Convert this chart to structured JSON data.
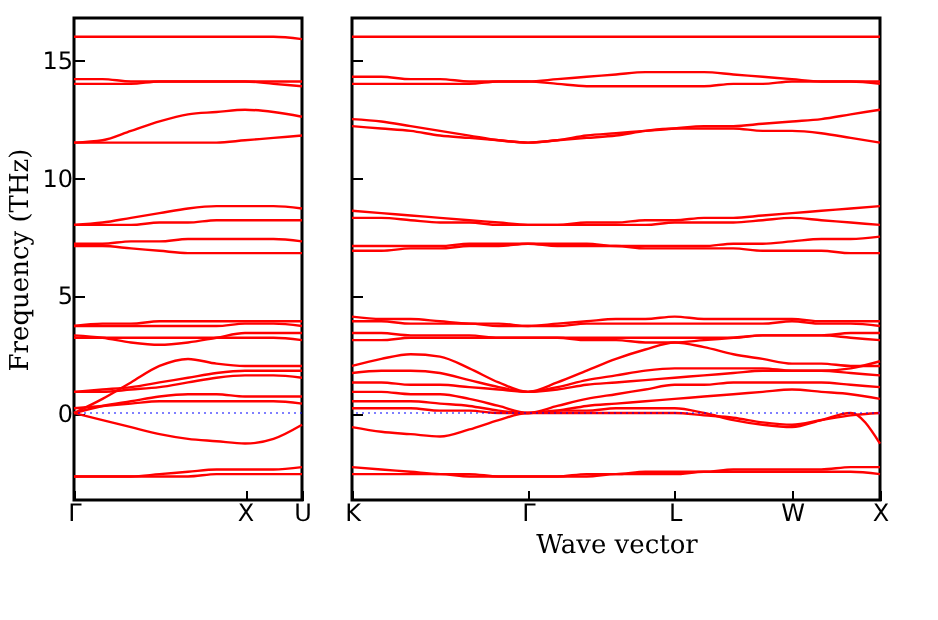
{
  "chart_data": [
    {
      "type": "line",
      "ylabel": "Frequency (THz)",
      "categories": [
        "Γ",
        null,
        null,
        null,
        null,
        null,
        "X",
        null,
        "U"
      ],
      "ylim": [
        -3.7,
        16.8
      ],
      "yticks": [
        0,
        5,
        10,
        15
      ],
      "grid": false,
      "legend": false,
      "ref_lines": [
        {
          "axis": "y",
          "value": 0,
          "color": "#0000ff",
          "line_style": "dotted"
        }
      ],
      "series": [
        {
          "color": "#ff0000",
          "values": [
            16.0,
            16.0,
            16.0,
            16.0,
            16.0,
            16.0,
            16.0,
            16.0,
            15.9
          ]
        },
        {
          "color": "#ff0000",
          "values": [
            14.0,
            14.0,
            14.0,
            14.1,
            14.1,
            14.1,
            14.1,
            14.0,
            13.9
          ]
        },
        {
          "color": "#ff0000",
          "values": [
            14.2,
            14.2,
            14.1,
            14.1,
            14.1,
            14.1,
            14.1,
            14.1,
            14.1
          ]
        },
        {
          "color": "#ff0000",
          "values": [
            11.5,
            11.6,
            12.0,
            12.4,
            12.7,
            12.8,
            12.9,
            12.8,
            12.6
          ]
        },
        {
          "color": "#ff0000",
          "values": [
            11.5,
            11.5,
            11.5,
            11.5,
            11.5,
            11.5,
            11.6,
            11.7,
            11.8
          ]
        },
        {
          "color": "#ff0000",
          "values": [
            8.0,
            8.1,
            8.3,
            8.5,
            8.7,
            8.8,
            8.8,
            8.8,
            8.7
          ]
        },
        {
          "color": "#ff0000",
          "values": [
            8.0,
            8.0,
            8.0,
            8.1,
            8.1,
            8.2,
            8.2,
            8.2,
            8.2
          ]
        },
        {
          "color": "#ff0000",
          "values": [
            7.2,
            7.2,
            7.3,
            7.3,
            7.4,
            7.4,
            7.4,
            7.4,
            7.3
          ]
        },
        {
          "color": "#ff0000",
          "values": [
            7.1,
            7.1,
            7.0,
            6.9,
            6.8,
            6.8,
            6.8,
            6.8,
            6.8
          ]
        },
        {
          "color": "#ff0000",
          "values": [
            3.7,
            3.8,
            3.8,
            3.9,
            3.9,
            3.9,
            3.9,
            3.9,
            3.9
          ]
        },
        {
          "color": "#ff0000",
          "values": [
            3.7,
            3.7,
            3.7,
            3.7,
            3.7,
            3.7,
            3.8,
            3.8,
            3.7
          ]
        },
        {
          "color": "#ff0000",
          "values": [
            3.3,
            3.2,
            3.0,
            2.9,
            3.0,
            3.2,
            3.4,
            3.4,
            3.4
          ]
        },
        {
          "color": "#ff0000",
          "values": [
            3.2,
            3.2,
            3.2,
            3.2,
            3.2,
            3.2,
            3.2,
            3.2,
            3.1
          ]
        },
        {
          "color": "#ff0000",
          "values": [
            0,
            0.6,
            1.3,
            2.0,
            2.3,
            2.1,
            2.0,
            2.0,
            2.0
          ]
        },
        {
          "color": "#ff0000",
          "values": [
            0.9,
            1.0,
            1.1,
            1.3,
            1.5,
            1.7,
            1.8,
            1.8,
            1.8
          ]
        },
        {
          "color": "#ff0000",
          "values": [
            0.9,
            0.9,
            1.0,
            1.1,
            1.3,
            1.5,
            1.6,
            1.6,
            1.5
          ]
        },
        {
          "color": "#ff0000",
          "values": [
            0,
            0.3,
            0.5,
            0.7,
            0.8,
            0.8,
            0.7,
            0.7,
            0.7
          ]
        },
        {
          "color": "#ff0000",
          "values": [
            0.2,
            0.3,
            0.4,
            0.5,
            0.5,
            0.5,
            0.5,
            0.5,
            0.4
          ]
        },
        {
          "color": "#ff0000",
          "values": [
            0,
            -0.3,
            -0.6,
            -0.9,
            -1.1,
            -1.2,
            -1.3,
            -1.1,
            -0.5
          ]
        },
        {
          "color": "#ff0000",
          "values": [
            -2.7,
            -2.7,
            -2.7,
            -2.6,
            -2.5,
            -2.4,
            -2.4,
            -2.4,
            -2.3
          ]
        },
        {
          "color": "#ff0000",
          "values": [
            -2.7,
            -2.7,
            -2.7,
            -2.7,
            -2.7,
            -2.6,
            -2.6,
            -2.6,
            -2.6
          ]
        }
      ]
    },
    {
      "type": "line",
      "xlabel": "Wave vector",
      "categories": [
        "K",
        null,
        null,
        null,
        null,
        null,
        "Γ",
        null,
        null,
        null,
        null,
        "L",
        null,
        null,
        null,
        "W",
        null,
        null,
        "X"
      ],
      "ylim": [
        -3.7,
        16.8
      ],
      "yticks": [
        0,
        5,
        10,
        15
      ],
      "tick_labels": "x",
      "grid": false,
      "legend": false,
      "ref_lines": [
        {
          "axis": "y",
          "value": 0,
          "color": "#0000ff",
          "line_style": "dotted"
        }
      ],
      "series": [
        {
          "color": "#ff0000",
          "values": [
            16.0,
            16.0,
            16.0,
            16.0,
            16.0,
            16.0,
            16.0,
            16.0,
            16.0,
            16.0,
            16.0,
            16.0,
            16.0,
            16.0,
            16.0,
            16.0,
            16.0,
            16.0,
            16.0
          ]
        },
        {
          "color": "#ff0000",
          "values": [
            14.3,
            14.3,
            14.2,
            14.2,
            14.1,
            14.1,
            14.1,
            14.2,
            14.3,
            14.4,
            14.5,
            14.5,
            14.5,
            14.4,
            14.3,
            14.2,
            14.1,
            14.1,
            14.1
          ]
        },
        {
          "color": "#ff0000",
          "values": [
            14.0,
            14.0,
            14.0,
            14.0,
            14.0,
            14.1,
            14.1,
            14.0,
            13.9,
            13.9,
            13.9,
            13.9,
            13.9,
            14.0,
            14.0,
            14.1,
            14.1,
            14.1,
            14.0
          ]
        },
        {
          "color": "#ff0000",
          "values": [
            12.5,
            12.4,
            12.2,
            12.0,
            11.8,
            11.6,
            11.5,
            11.6,
            11.8,
            11.9,
            12.0,
            12.1,
            12.2,
            12.2,
            12.3,
            12.4,
            12.5,
            12.7,
            12.9
          ]
        },
        {
          "color": "#ff0000",
          "values": [
            12.2,
            12.1,
            12.0,
            11.8,
            11.7,
            11.6,
            11.5,
            11.6,
            11.7,
            11.8,
            12.0,
            12.1,
            12.1,
            12.1,
            12.0,
            12.0,
            11.9,
            11.7,
            11.5
          ]
        },
        {
          "color": "#ff0000",
          "values": [
            8.6,
            8.5,
            8.4,
            8.3,
            8.2,
            8.1,
            8.0,
            8.0,
            8.1,
            8.1,
            8.2,
            8.2,
            8.3,
            8.3,
            8.4,
            8.5,
            8.6,
            8.7,
            8.8
          ]
        },
        {
          "color": "#ff0000",
          "values": [
            8.3,
            8.3,
            8.2,
            8.1,
            8.1,
            8.0,
            8.0,
            8.0,
            8.0,
            8.0,
            8.0,
            8.1,
            8.1,
            8.1,
            8.2,
            8.3,
            8.2,
            8.1,
            8.0
          ]
        },
        {
          "color": "#ff0000",
          "values": [
            7.1,
            7.1,
            7.1,
            7.1,
            7.2,
            7.2,
            7.2,
            7.2,
            7.2,
            7.1,
            7.1,
            7.1,
            7.1,
            7.2,
            7.2,
            7.3,
            7.4,
            7.4,
            7.5
          ]
        },
        {
          "color": "#ff0000",
          "values": [
            6.9,
            6.9,
            7.0,
            7.0,
            7.1,
            7.1,
            7.2,
            7.1,
            7.1,
            7.1,
            7.0,
            7.0,
            7.0,
            7.0,
            6.9,
            6.9,
            6.9,
            6.8,
            6.8
          ]
        },
        {
          "color": "#ff0000",
          "values": [
            4.1,
            4.0,
            4.0,
            3.9,
            3.8,
            3.8,
            3.7,
            3.8,
            3.9,
            4.0,
            4.0,
            4.1,
            4.0,
            4.0,
            4.0,
            4.0,
            3.9,
            3.9,
            3.9
          ]
        },
        {
          "color": "#ff0000",
          "values": [
            3.9,
            3.9,
            3.8,
            3.8,
            3.8,
            3.7,
            3.7,
            3.7,
            3.8,
            3.8,
            3.8,
            3.8,
            3.8,
            3.8,
            3.8,
            3.9,
            3.8,
            3.8,
            3.7
          ]
        },
        {
          "color": "#ff0000",
          "values": [
            3.4,
            3.4,
            3.3,
            3.3,
            3.3,
            3.2,
            3.2,
            3.2,
            3.1,
            3.1,
            3.0,
            3.0,
            3.1,
            3.2,
            3.3,
            3.3,
            3.3,
            3.4,
            3.4
          ]
        },
        {
          "color": "#ff0000",
          "values": [
            3.1,
            3.1,
            3.2,
            3.2,
            3.2,
            3.2,
            3.2,
            3.2,
            3.2,
            3.2,
            3.2,
            3.2,
            3.2,
            3.2,
            3.3,
            3.3,
            3.3,
            3.2,
            3.1
          ]
        },
        {
          "color": "#ff0000",
          "values": [
            2.0,
            2.3,
            2.5,
            2.4,
            1.9,
            1.3,
            0.9,
            1.3,
            1.8,
            2.3,
            2.7,
            3.0,
            2.8,
            2.5,
            2.3,
            2.1,
            2.1,
            2.0,
            2.0
          ]
        },
        {
          "color": "#ff0000",
          "values": [
            1.7,
            1.8,
            1.8,
            1.7,
            1.4,
            1.1,
            0.9,
            1.1,
            1.4,
            1.6,
            1.8,
            1.9,
            1.9,
            1.9,
            1.9,
            1.8,
            1.8,
            1.7,
            1.6
          ]
        },
        {
          "color": "#ff0000",
          "values": [
            1.3,
            1.3,
            1.2,
            1.2,
            1.1,
            1.0,
            0.9,
            1.0,
            1.2,
            1.3,
            1.4,
            1.5,
            1.6,
            1.7,
            1.8,
            1.8,
            1.8,
            1.9,
            2.2
          ]
        },
        {
          "color": "#ff0000",
          "values": [
            0.9,
            0.9,
            0.8,
            0.8,
            0.6,
            0.3,
            0,
            0.3,
            0.6,
            0.8,
            1.0,
            1.2,
            1.2,
            1.3,
            1.3,
            1.3,
            1.3,
            1.2,
            1.1
          ]
        },
        {
          "color": "#ff0000",
          "values": [
            0.5,
            0.5,
            0.5,
            0.4,
            0.3,
            0.1,
            0,
            0.1,
            0.3,
            0.4,
            0.5,
            0.6,
            0.7,
            0.8,
            0.9,
            1.0,
            0.9,
            0.8,
            0.6
          ]
        },
        {
          "color": "#ff0000",
          "values": [
            0.2,
            0.2,
            0.2,
            0.1,
            0.1,
            0,
            0,
            0.1,
            0.1,
            0.2,
            0.2,
            0.2,
            0,
            -0.3,
            -0.5,
            -0.6,
            -0.3,
            0,
            -1.3
          ]
        },
        {
          "color": "#ff0000",
          "values": [
            -0.6,
            -0.8,
            -0.9,
            -1.0,
            -0.7,
            -0.3,
            0,
            0,
            0,
            0,
            0,
            0,
            -0.1,
            -0.2,
            -0.4,
            -0.5,
            -0.3,
            -0.1,
            0
          ]
        },
        {
          "color": "#ff0000",
          "values": [
            -2.3,
            -2.4,
            -2.5,
            -2.6,
            -2.6,
            -2.7,
            -2.7,
            -2.7,
            -2.6,
            -2.6,
            -2.5,
            -2.5,
            -2.5,
            -2.4,
            -2.4,
            -2.4,
            -2.4,
            -2.3,
            -2.3
          ]
        },
        {
          "color": "#ff0000",
          "values": [
            -2.6,
            -2.6,
            -2.6,
            -2.6,
            -2.7,
            -2.7,
            -2.7,
            -2.7,
            -2.7,
            -2.6,
            -2.6,
            -2.6,
            -2.5,
            -2.5,
            -2.5,
            -2.5,
            -2.5,
            -2.5,
            -2.6
          ]
        }
      ]
    }
  ]
}
